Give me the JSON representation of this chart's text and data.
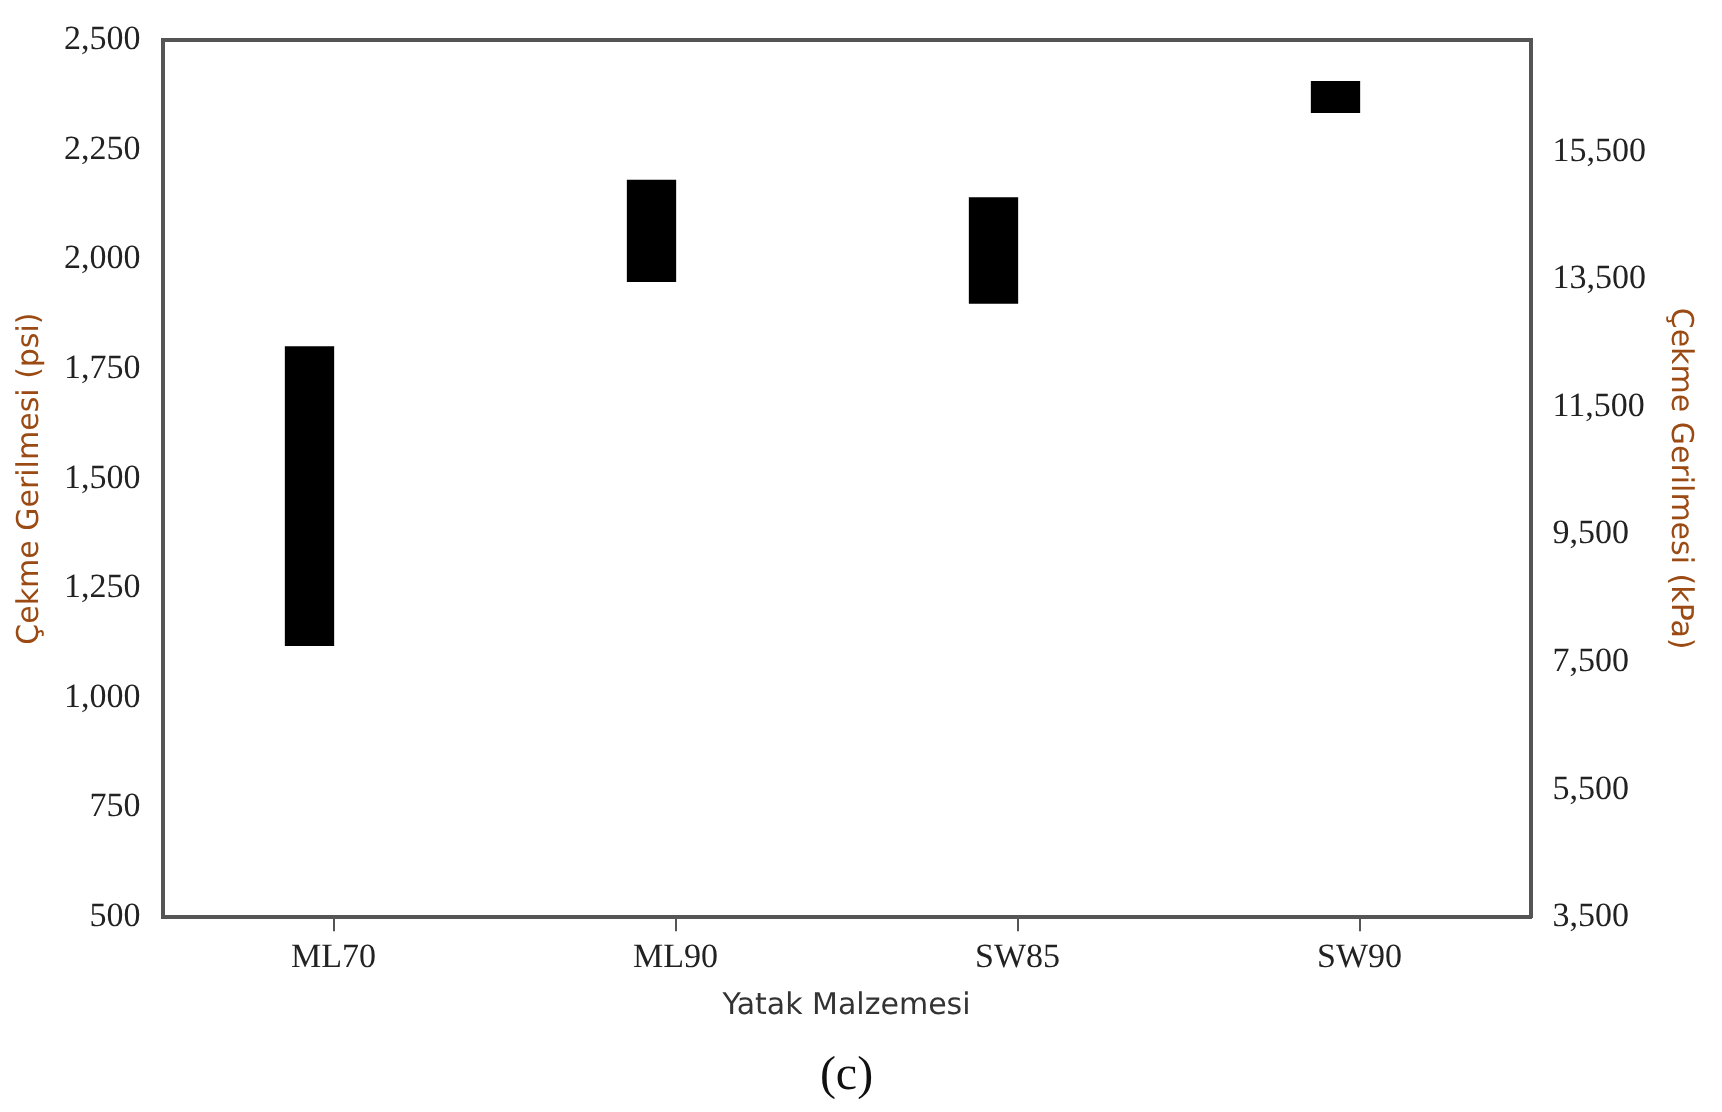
{
  "chart_data": {
    "type": "bar",
    "categories": [
      "ML70",
      "ML90",
      "SW85",
      "SW90"
    ],
    "base": [
      1120,
      1950,
      1900,
      2335
    ],
    "values": [
      680,
      230,
      240,
      70
    ],
    "color": "#000000",
    "xlabel": "Yatak Malzemesi",
    "ylabel": "Çekme Gerilmesi (psi)",
    "y2label": "Çekme Gerilmesi (kPa)",
    "ylim": [
      500,
      2500
    ],
    "yticks": [
      500,
      750,
      {
        "value": 1000,
        "label": "1,000"
      },
      {
        "value": 1250,
        "label": "1,250"
      },
      {
        "value": 1500,
        "label": "1,500"
      },
      {
        "value": 1750,
        "label": "1,750"
      },
      {
        "value": 2000,
        "label": "2,000"
      },
      {
        "value": 2250,
        "label": "2,250"
      },
      {
        "value": 2500,
        "label": "2,500"
      }
    ],
    "y2lim": [
      3500,
      17250
    ],
    "y2ticks": [
      {
        "value": 3500,
        "label": "3,500"
      },
      {
        "value": 5500,
        "label": "5,500"
      },
      {
        "value": 7500,
        "label": "7,500"
      },
      {
        "value": 9500,
        "label": "9,500"
      },
      {
        "value": 11500,
        "label": "11,500"
      },
      {
        "value": 13500,
        "label": "13,500"
      },
      {
        "value": 15500,
        "label": "15,500"
      }
    ],
    "annotations": [
      "(c)"
    ],
    "grid": false,
    "legend": false
  }
}
